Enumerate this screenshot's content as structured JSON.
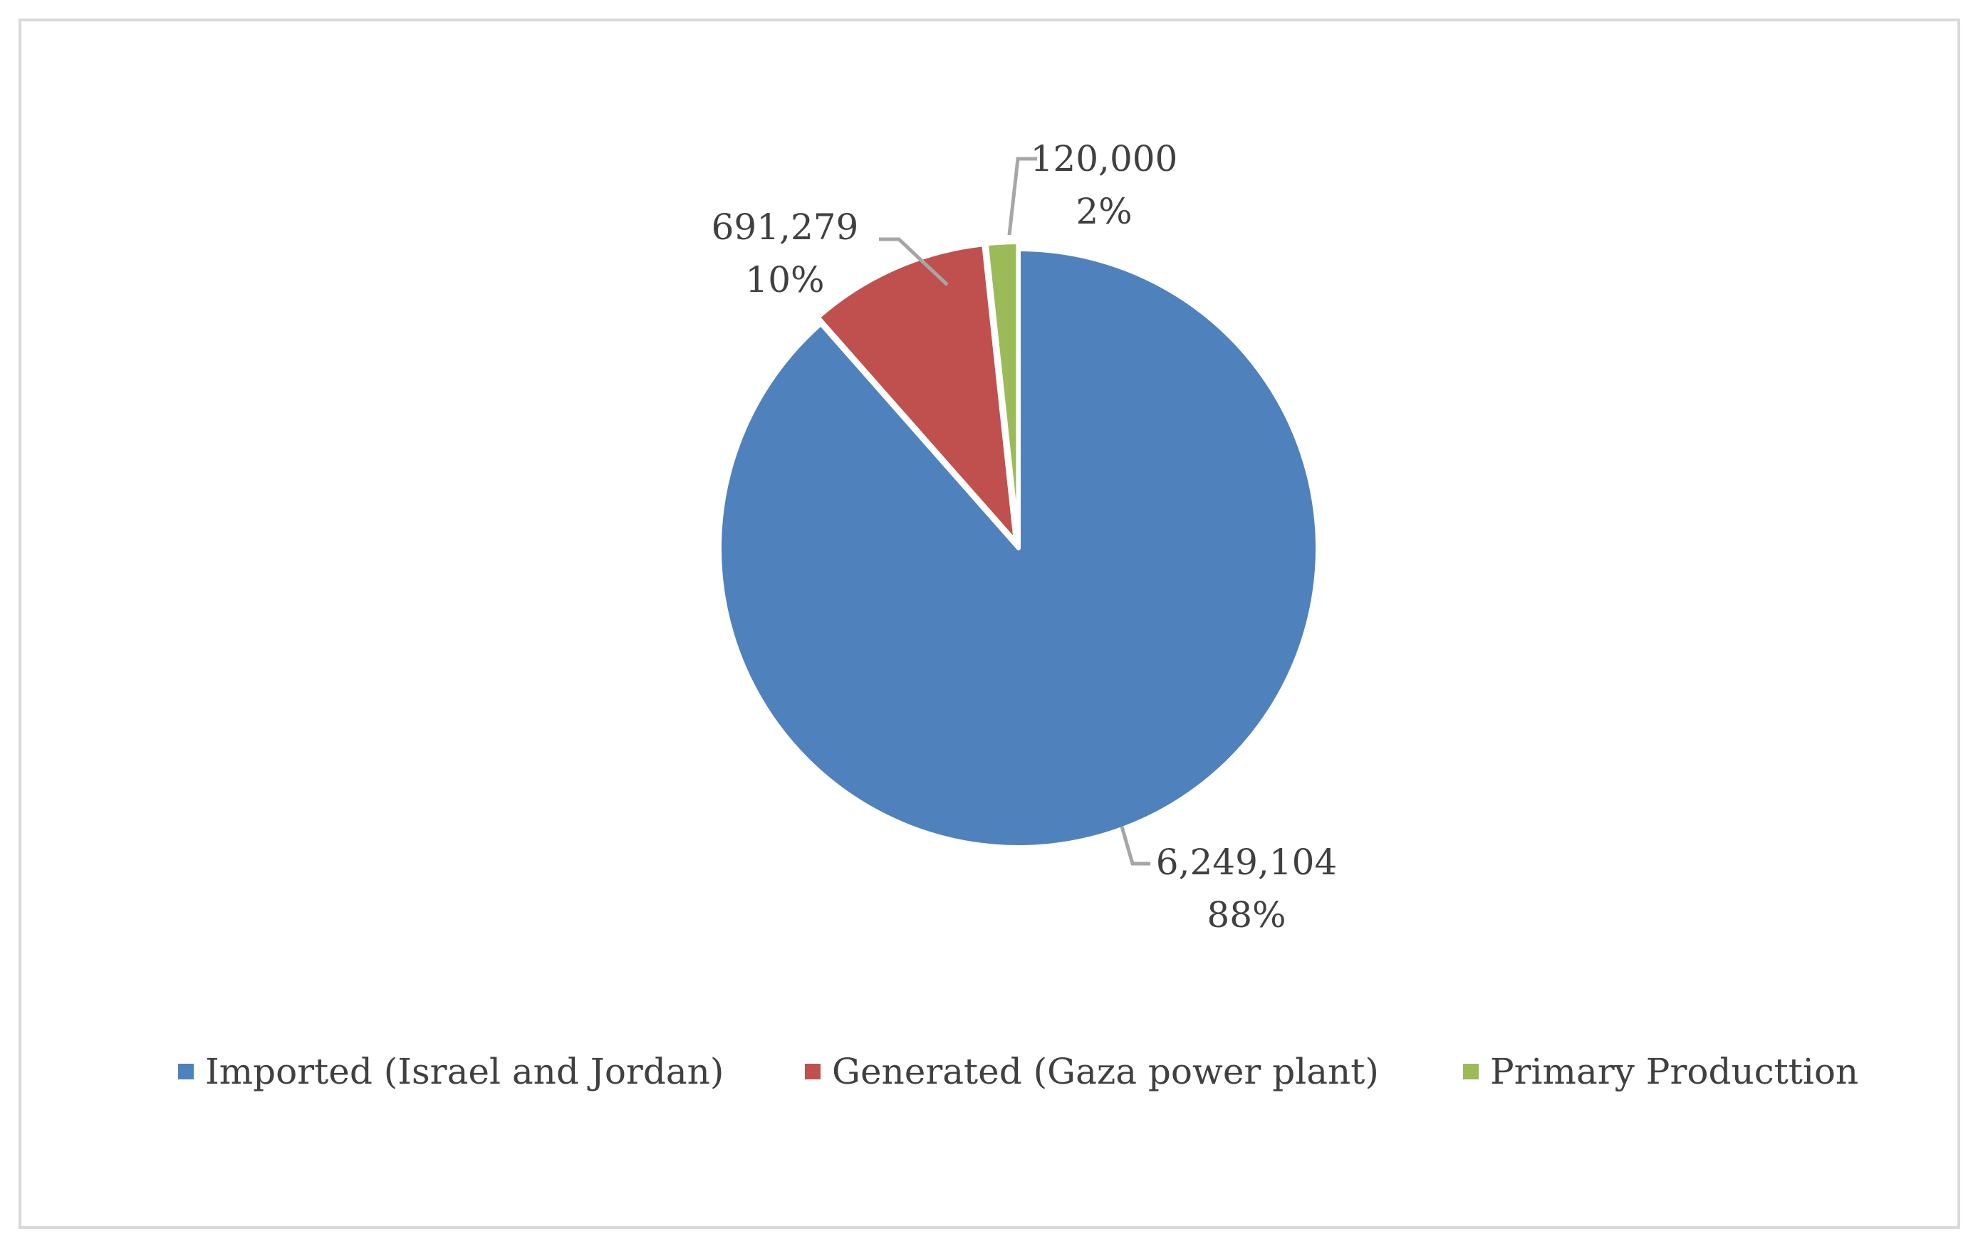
{
  "chart_data": {
    "type": "pie",
    "title": "",
    "categories": [
      "Imported (Israel and Jordan)",
      "Generated (Gaza power plant)",
      "Primary Producttion"
    ],
    "values": [
      6249104,
      691279,
      120000
    ],
    "value_labels": [
      "6,249,104",
      "691,279",
      "120,000"
    ],
    "percent_labels": [
      "88%",
      "10%",
      "2%"
    ],
    "colors": [
      "#4f81bd",
      "#c0504d",
      "#9bbb59"
    ],
    "legend_position": "bottom",
    "start_angle": "12 o'clock",
    "direction": "clockwise"
  }
}
